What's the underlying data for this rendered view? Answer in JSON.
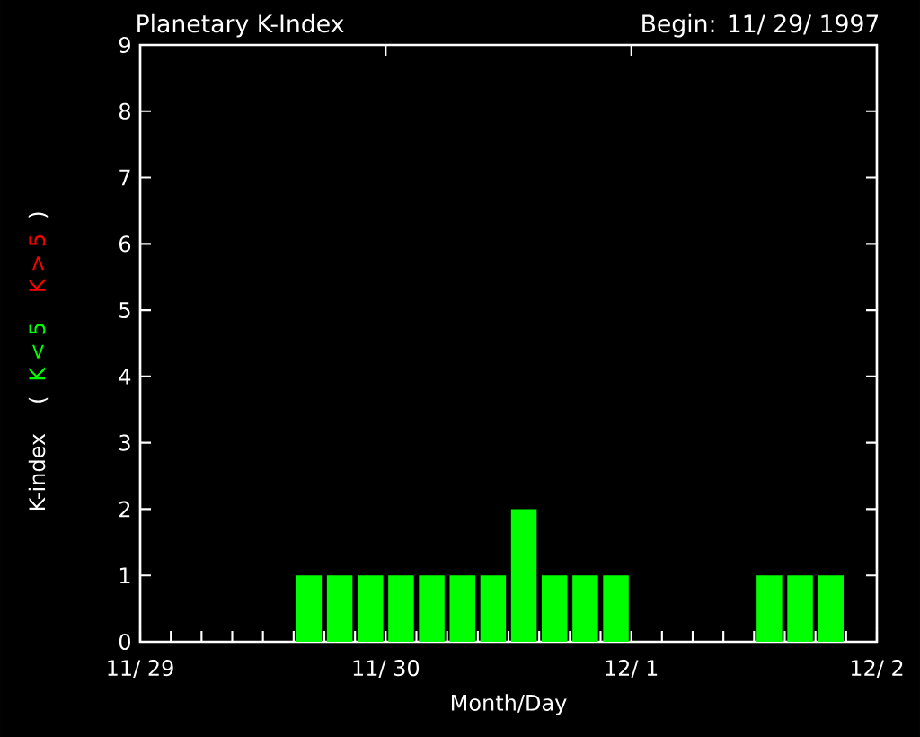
{
  "chart_data": {
    "type": "bar",
    "title": "Planetary K-Index",
    "subtitle": "Begin: 11/ 29/ 1997",
    "xlabel": "Month/Day",
    "ylabel": "K-index",
    "annotations": [
      "(",
      ")"
    ],
    "x": [
      "1997-11-29T01:30",
      "1997-11-29T04:30",
      "1997-11-29T07:30",
      "1997-11-29T10:30",
      "1997-11-29T13:30",
      "1997-11-29T16:30",
      "1997-11-29T19:30",
      "1997-11-29T22:30",
      "1997-11-30T01:30",
      "1997-11-30T04:30",
      "1997-11-30T07:30",
      "1997-11-30T10:30",
      "1997-11-30T13:30",
      "1997-11-30T16:30",
      "1997-11-30T19:30",
      "1997-11-30T22:30",
      "1997-12-01T01:30",
      "1997-12-01T04:30",
      "1997-12-01T07:30",
      "1997-12-01T10:30",
      "1997-12-01T13:30",
      "1997-12-01T16:30",
      "1997-12-01T19:30",
      "1997-12-01T22:30"
    ],
    "series": [
      {
        "name": "K < 5",
        "color": "#00ff00",
        "values": [
          0,
          0,
          0,
          0,
          0,
          1,
          1,
          1,
          1,
          1,
          1,
          1,
          2,
          1,
          1,
          1,
          0,
          0,
          0,
          0,
          1,
          1,
          1,
          0
        ]
      },
      {
        "name": "K > 5",
        "color": "#ff0000",
        "values": [
          null,
          null,
          null,
          null,
          null,
          null,
          null,
          null,
          null,
          null,
          null,
          null,
          null,
          null,
          null,
          null,
          null,
          null,
          null,
          null,
          null,
          null,
          null,
          null
        ]
      }
    ],
    "xlim": [
      "1997-11-29",
      "1997-12-02"
    ],
    "xticks": [
      {
        "value": "1997-11-29",
        "label": "11/ 29"
      },
      {
        "value": "1997-11-30",
        "label": "11/ 30"
      },
      {
        "value": "1997-12-01",
        "label": "12/ 1"
      },
      {
        "value": "1997-12-02",
        "label": "12/ 2"
      }
    ],
    "ylim": [
      0,
      9
    ],
    "yticks": [
      0,
      1,
      2,
      3,
      4,
      5,
      6,
      7,
      8,
      9
    ],
    "grid": false,
    "legend": false
  }
}
